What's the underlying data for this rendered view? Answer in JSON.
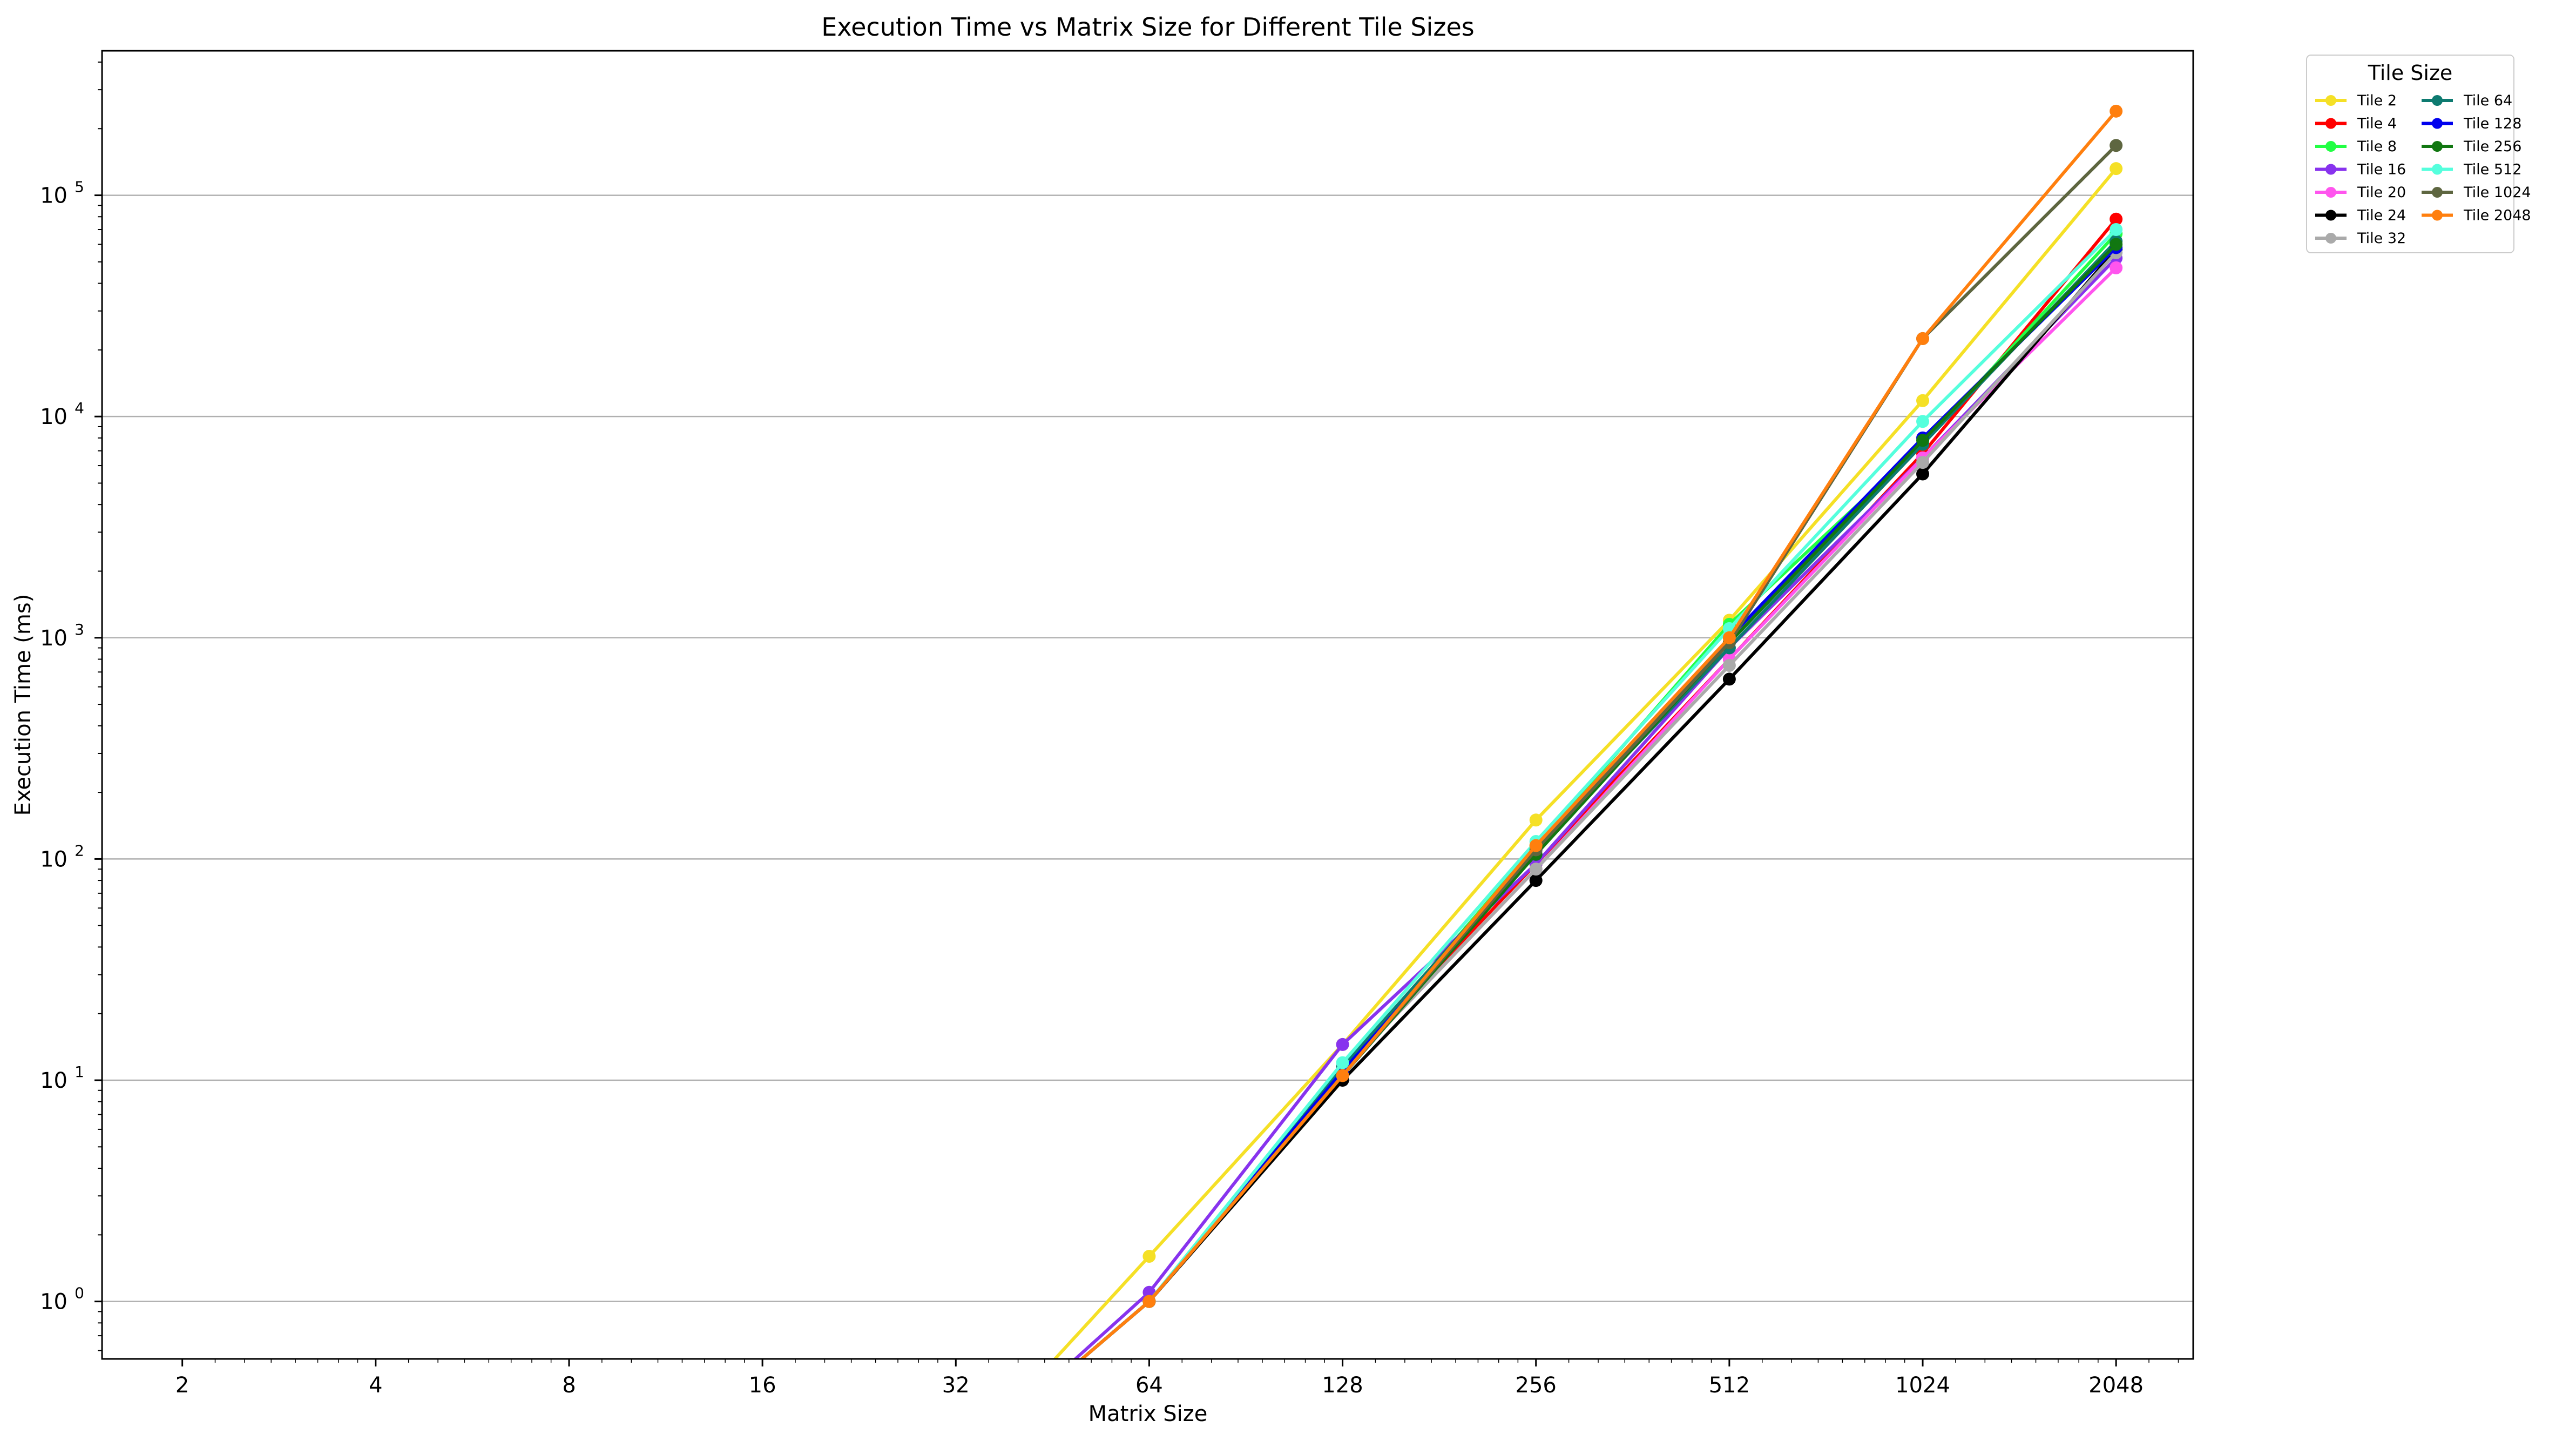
{
  "chart_data": {
    "type": "line",
    "title": "Execution Time vs Matrix Size for Different Tile Sizes",
    "xlabel": "Matrix Size",
    "ylabel": "Execution Time (ms)",
    "x_scale": "log2",
    "y_scale": "log10",
    "xlim": [
      1.5,
      2700
    ],
    "ylim": [
      0.55,
      450000
    ],
    "x_ticks": [
      2,
      4,
      8,
      16,
      32,
      64,
      128,
      256,
      512,
      1024,
      2048
    ],
    "x_tick_labels": [
      "2",
      "4",
      "8",
      "16",
      "32",
      "64",
      "128",
      "256",
      "512",
      "1024",
      "2048"
    ],
    "y_ticks": [
      1,
      10,
      100,
      1000,
      10000,
      100000
    ],
    "y_tick_labels": [
      {
        "base": "10",
        "exp": "0"
      },
      {
        "base": "10",
        "exp": "1"
      },
      {
        "base": "10",
        "exp": "2"
      },
      {
        "base": "10",
        "exp": "3"
      },
      {
        "base": "10",
        "exp": "4"
      },
      {
        "base": "10",
        "exp": "5"
      }
    ],
    "grid": "horizontal major",
    "legend": {
      "title": "Tile Size",
      "placement": "outside upper right",
      "columns": 2
    },
    "x": [
      2,
      4,
      8,
      16,
      32,
      64,
      128,
      256,
      512,
      1024,
      2048
    ],
    "series": [
      {
        "name": "Tile 2",
        "color": "#f5e026",
        "values": [
          0,
          0,
          0,
          0,
          0,
          1.6,
          14.5,
          150,
          1200,
          11800,
          132000
        ]
      },
      {
        "name": "Tile 4",
        "color": "#ff0000",
        "values": [
          0,
          0,
          0,
          0,
          0,
          1.0,
          11.5,
          95,
          800,
          6800,
          78000
        ]
      },
      {
        "name": "Tile 8",
        "color": "#22ff44",
        "values": [
          0,
          0,
          0,
          0,
          0,
          1.0,
          11.0,
          115,
          1150,
          7500,
          67000
        ]
      },
      {
        "name": "Tile 16",
        "color": "#8833ee",
        "values": [
          0,
          0,
          0,
          0,
          0,
          1.1,
          14.5,
          95,
          900,
          6500,
          52000
        ]
      },
      {
        "name": "Tile 20",
        "color": "#ff55ee",
        "values": [
          0,
          0,
          0,
          0,
          0,
          1.0,
          11.0,
          90,
          800,
          6500,
          47000
        ]
      },
      {
        "name": "Tile 24",
        "color": "#000000",
        "values": [
          0,
          0,
          0,
          0,
          0,
          1.0,
          10.0,
          80,
          650,
          5500,
          57000
        ]
      },
      {
        "name": "Tile 32",
        "color": "#aaaaaa",
        "values": [
          0,
          0,
          0,
          0,
          0,
          1.0,
          11.0,
          90,
          750,
          6200,
          55000
        ]
      },
      {
        "name": "Tile 64",
        "color": "#0d7a70",
        "values": [
          0,
          0,
          0,
          0,
          0,
          1.0,
          11.5,
          110,
          900,
          7500,
          62000
        ]
      },
      {
        "name": "Tile 128",
        "color": "#0000ee",
        "values": [
          0,
          0,
          0,
          0,
          0,
          1.0,
          11.0,
          105,
          1000,
          8000,
          58000
        ]
      },
      {
        "name": "Tile 256",
        "color": "#117711",
        "values": [
          0,
          0,
          0,
          0,
          0,
          1.0,
          10.5,
          105,
          950,
          7800,
          60000
        ]
      },
      {
        "name": "Tile 512",
        "color": "#55ffdd",
        "values": [
          0,
          0,
          0,
          0,
          0,
          1.0,
          12.0,
          120,
          1100,
          9500,
          70000
        ]
      },
      {
        "name": "Tile 1024",
        "color": "#5e6640",
        "values": [
          0,
          0,
          0,
          0,
          0,
          1.0,
          10.5,
          110,
          950,
          22500,
          168000
        ]
      },
      {
        "name": "Tile 2048",
        "color": "#ff7f0e",
        "values": [
          0,
          0,
          0,
          0,
          0,
          1.0,
          10.5,
          115,
          1000,
          22500,
          240000
        ]
      }
    ]
  }
}
